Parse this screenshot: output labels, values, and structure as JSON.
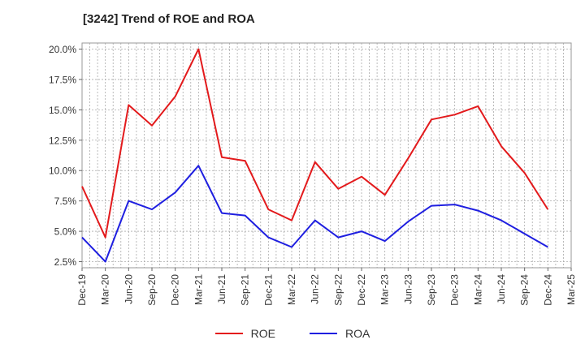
{
  "chart_data": {
    "type": "line",
    "title": "[3242]  Trend of ROE and ROA",
    "xlabel": "",
    "ylabel": "",
    "categories": [
      "Dec-19",
      "Mar-20",
      "Jun-20",
      "Sep-20",
      "Dec-20",
      "Mar-21",
      "Jun-21",
      "Sep-21",
      "Dec-21",
      "Mar-22",
      "Jun-22",
      "Sep-22",
      "Dec-22",
      "Mar-23",
      "Jun-23",
      "Sep-23",
      "Dec-23",
      "Mar-24",
      "Jun-24",
      "Sep-24",
      "Dec-24",
      "Mar-25"
    ],
    "ylim": [
      2.0,
      20.5
    ],
    "yticks": [
      "2.5%",
      "5.0%",
      "7.5%",
      "10.0%",
      "12.5%",
      "15.0%",
      "17.5%",
      "20.0%"
    ],
    "ytick_values": [
      2.5,
      5.0,
      7.5,
      10.0,
      12.5,
      15.0,
      17.5,
      20.0
    ],
    "grid": true,
    "legend_position": "bottom-center",
    "series": [
      {
        "name": "ROE",
        "color": "#e31a1c",
        "values": [
          8.7,
          4.5,
          15.4,
          13.7,
          16.1,
          20.0,
          11.1,
          10.8,
          6.8,
          5.9,
          10.7,
          8.5,
          9.5,
          8.0,
          11.0,
          14.2,
          14.6,
          15.3,
          12.0,
          9.8,
          6.8,
          null
        ]
      },
      {
        "name": "ROA",
        "color": "#1f1fe0",
        "values": [
          4.5,
          2.5,
          7.5,
          6.8,
          8.2,
          10.4,
          6.5,
          6.3,
          4.5,
          3.7,
          5.9,
          4.5,
          5.0,
          4.2,
          5.8,
          7.1,
          7.2,
          6.7,
          5.9,
          4.8,
          3.7,
          null
        ]
      }
    ]
  }
}
